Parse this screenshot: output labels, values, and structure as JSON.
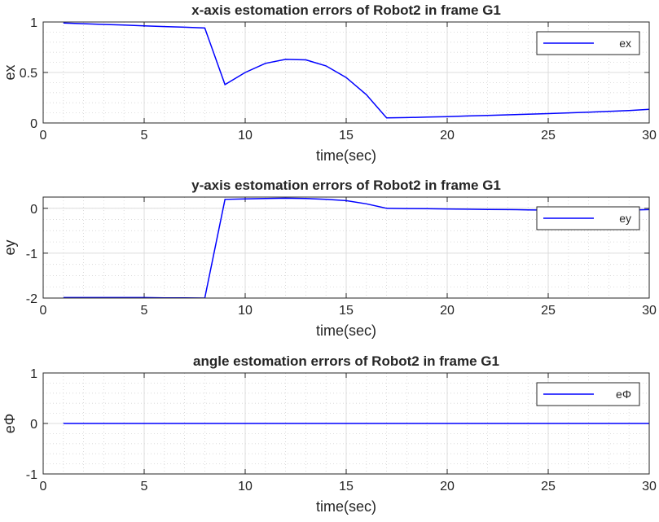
{
  "chart_data": [
    {
      "type": "line",
      "title": "x-axis estomation errors of Robot2 in frame G1",
      "xlabel": "time(sec)",
      "ylabel": "ex",
      "xlim": [
        0,
        30
      ],
      "ylim": [
        0,
        1
      ],
      "xticks": [
        "0",
        "5",
        "10",
        "15",
        "20",
        "25",
        "30"
      ],
      "yticks": [
        "0",
        "0.5",
        "1"
      ],
      "grid": true,
      "minor_grid": true,
      "legend_position": "top-right",
      "series": [
        {
          "name": "ex",
          "color": "#0000ff",
          "x": [
            1,
            2,
            3,
            4,
            5,
            6,
            7,
            8,
            9,
            10,
            11,
            12,
            13,
            14,
            15,
            16,
            17,
            18,
            19,
            20,
            21,
            22,
            23,
            24,
            25,
            26,
            27,
            28,
            29,
            30
          ],
          "y": [
            0.99,
            0.983,
            0.976,
            0.969,
            0.962,
            0.955,
            0.948,
            0.94,
            0.38,
            0.5,
            0.59,
            0.63,
            0.625,
            0.565,
            0.45,
            0.28,
            0.05,
            0.053,
            0.058,
            0.063,
            0.069,
            0.075,
            0.081,
            0.087,
            0.093,
            0.1,
            0.107,
            0.115,
            0.123,
            0.135
          ]
        }
      ]
    },
    {
      "type": "line",
      "title": "y-axis estomation errors of Robot2 in frame G1",
      "xlabel": "time(sec)",
      "ylabel": "ey",
      "xlim": [
        0,
        30
      ],
      "ylim": [
        -2,
        0.25
      ],
      "xticks": [
        "0",
        "5",
        "10",
        "15",
        "20",
        "25",
        "30"
      ],
      "yticks": [
        "-2",
        "-1",
        "0"
      ],
      "grid": true,
      "minor_grid": true,
      "legend_position": "top-right",
      "series": [
        {
          "name": "ey",
          "color": "#0000ff",
          "x": [
            1,
            2,
            3,
            4,
            5,
            6,
            7,
            8,
            9,
            10,
            11,
            12,
            13,
            14,
            15,
            16,
            17,
            18,
            19,
            20,
            21,
            22,
            23,
            24,
            25,
            26,
            27,
            28,
            29,
            30
          ],
          "y": [
            -1.99,
            -1.99,
            -1.99,
            -1.99,
            -1.99,
            -1.995,
            -1.995,
            -2.0,
            0.2,
            0.21,
            0.22,
            0.225,
            0.22,
            0.2,
            0.17,
            0.1,
            0.0,
            -0.005,
            -0.01,
            -0.015,
            -0.02,
            -0.025,
            -0.03,
            -0.035,
            -0.04,
            -0.045,
            -0.045,
            -0.045,
            -0.04,
            -0.03
          ]
        }
      ]
    },
    {
      "type": "line",
      "title": "angle estomation errors of Robot2 in frame G1",
      "xlabel": "time(sec)",
      "ylabel": "eΦ",
      "xlim": [
        0,
        30
      ],
      "ylim": [
        -1,
        1
      ],
      "xticks": [
        "0",
        "5",
        "10",
        "15",
        "20",
        "25",
        "30"
      ],
      "yticks": [
        "-1",
        "0",
        "1"
      ],
      "grid": true,
      "minor_grid": true,
      "legend_position": "top-right",
      "series": [
        {
          "name": "eΦ",
          "color": "#0000ff",
          "x": [
            1,
            30
          ],
          "y": [
            0,
            0
          ]
        }
      ]
    }
  ]
}
